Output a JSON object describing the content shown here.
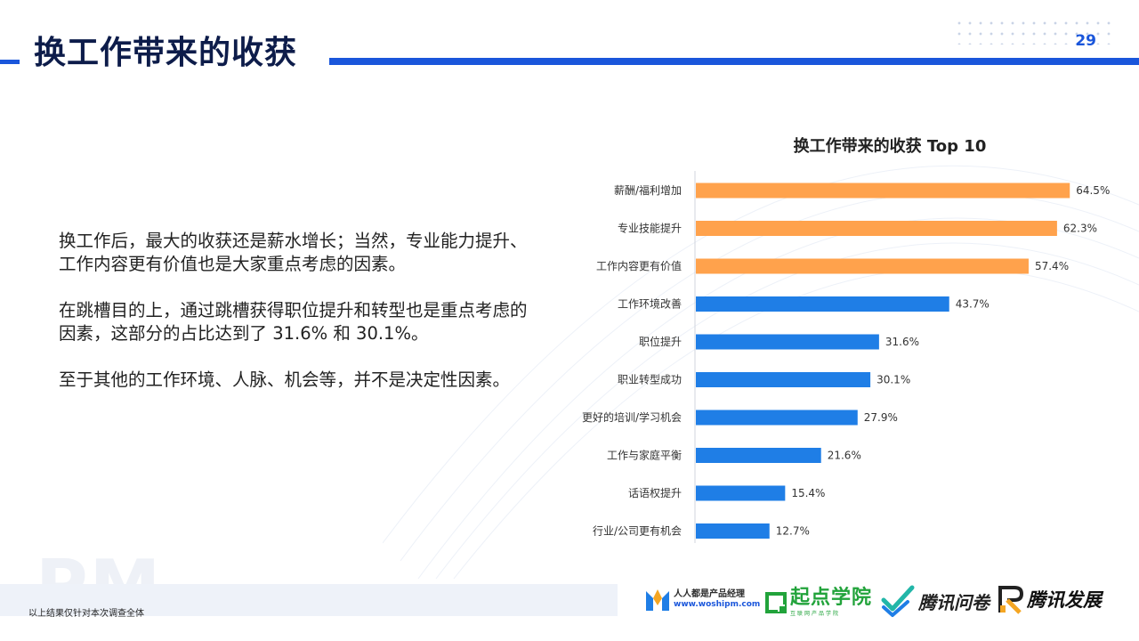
{
  "header": {
    "title": "换工作带来的收获",
    "page_number": "29"
  },
  "body": {
    "paragraphs": [
      "换工作后，最大的收获还是薪水增长；当然，专业能力提升、工作内容更有价值也是大家重点考虑的因素。",
      "在跳槽目的上，通过跳槽获得职位提升和转型也是重点考虑的因素，这部分的占比达到了 31.6% 和 30.1%。",
      "至于其他的工作环境、人脉、机会等，并不是决定性因素。"
    ]
  },
  "chart_data": {
    "type": "bar",
    "orientation": "horizontal",
    "title": "换工作带来的收获 Top 10",
    "categories": [
      "薪酬/福利增加",
      "专业技能提升",
      "工作内容更有价值",
      "工作环境改善",
      "职位提升",
      "职业转型成功",
      "更好的培训/学习机会",
      "工作与家庭平衡",
      "话语权提升",
      "行业/公司更有机会"
    ],
    "values": [
      64.5,
      62.3,
      57.4,
      43.7,
      31.6,
      30.1,
      27.9,
      21.6,
      15.4,
      12.7
    ],
    "labels": [
      "64.5%",
      "62.3%",
      "57.4%",
      "43.7%",
      "31.6%",
      "30.1%",
      "27.9%",
      "21.6%",
      "15.4%",
      "12.7%"
    ],
    "bar_colors": [
      "#ffa24c",
      "#ffa24c",
      "#ffa24c",
      "#1f7ee6",
      "#1f7ee6",
      "#1f7ee6",
      "#1f7ee6",
      "#1f7ee6",
      "#1f7ee6",
      "#1f7ee6"
    ],
    "xlim": [
      0,
      66
    ],
    "grid": false,
    "legend": "none"
  },
  "footer": {
    "note": "以上结果仅针对本次调查全体",
    "watermark": "PM",
    "logos": {
      "woshipm_name": "人人都是产品经理",
      "woshipm_url": "www.woshipm.com",
      "qidian_name": "起点学院",
      "qidian_sub": "互联网产品学院",
      "wenjuan_name": "腾讯问卷",
      "fazhan_name": "腾讯发展"
    }
  },
  "colors": {
    "accent": "#1a56db",
    "title": "#0d1c4a",
    "bar_highlight": "#ffa24c",
    "bar_default": "#1f7ee6"
  }
}
